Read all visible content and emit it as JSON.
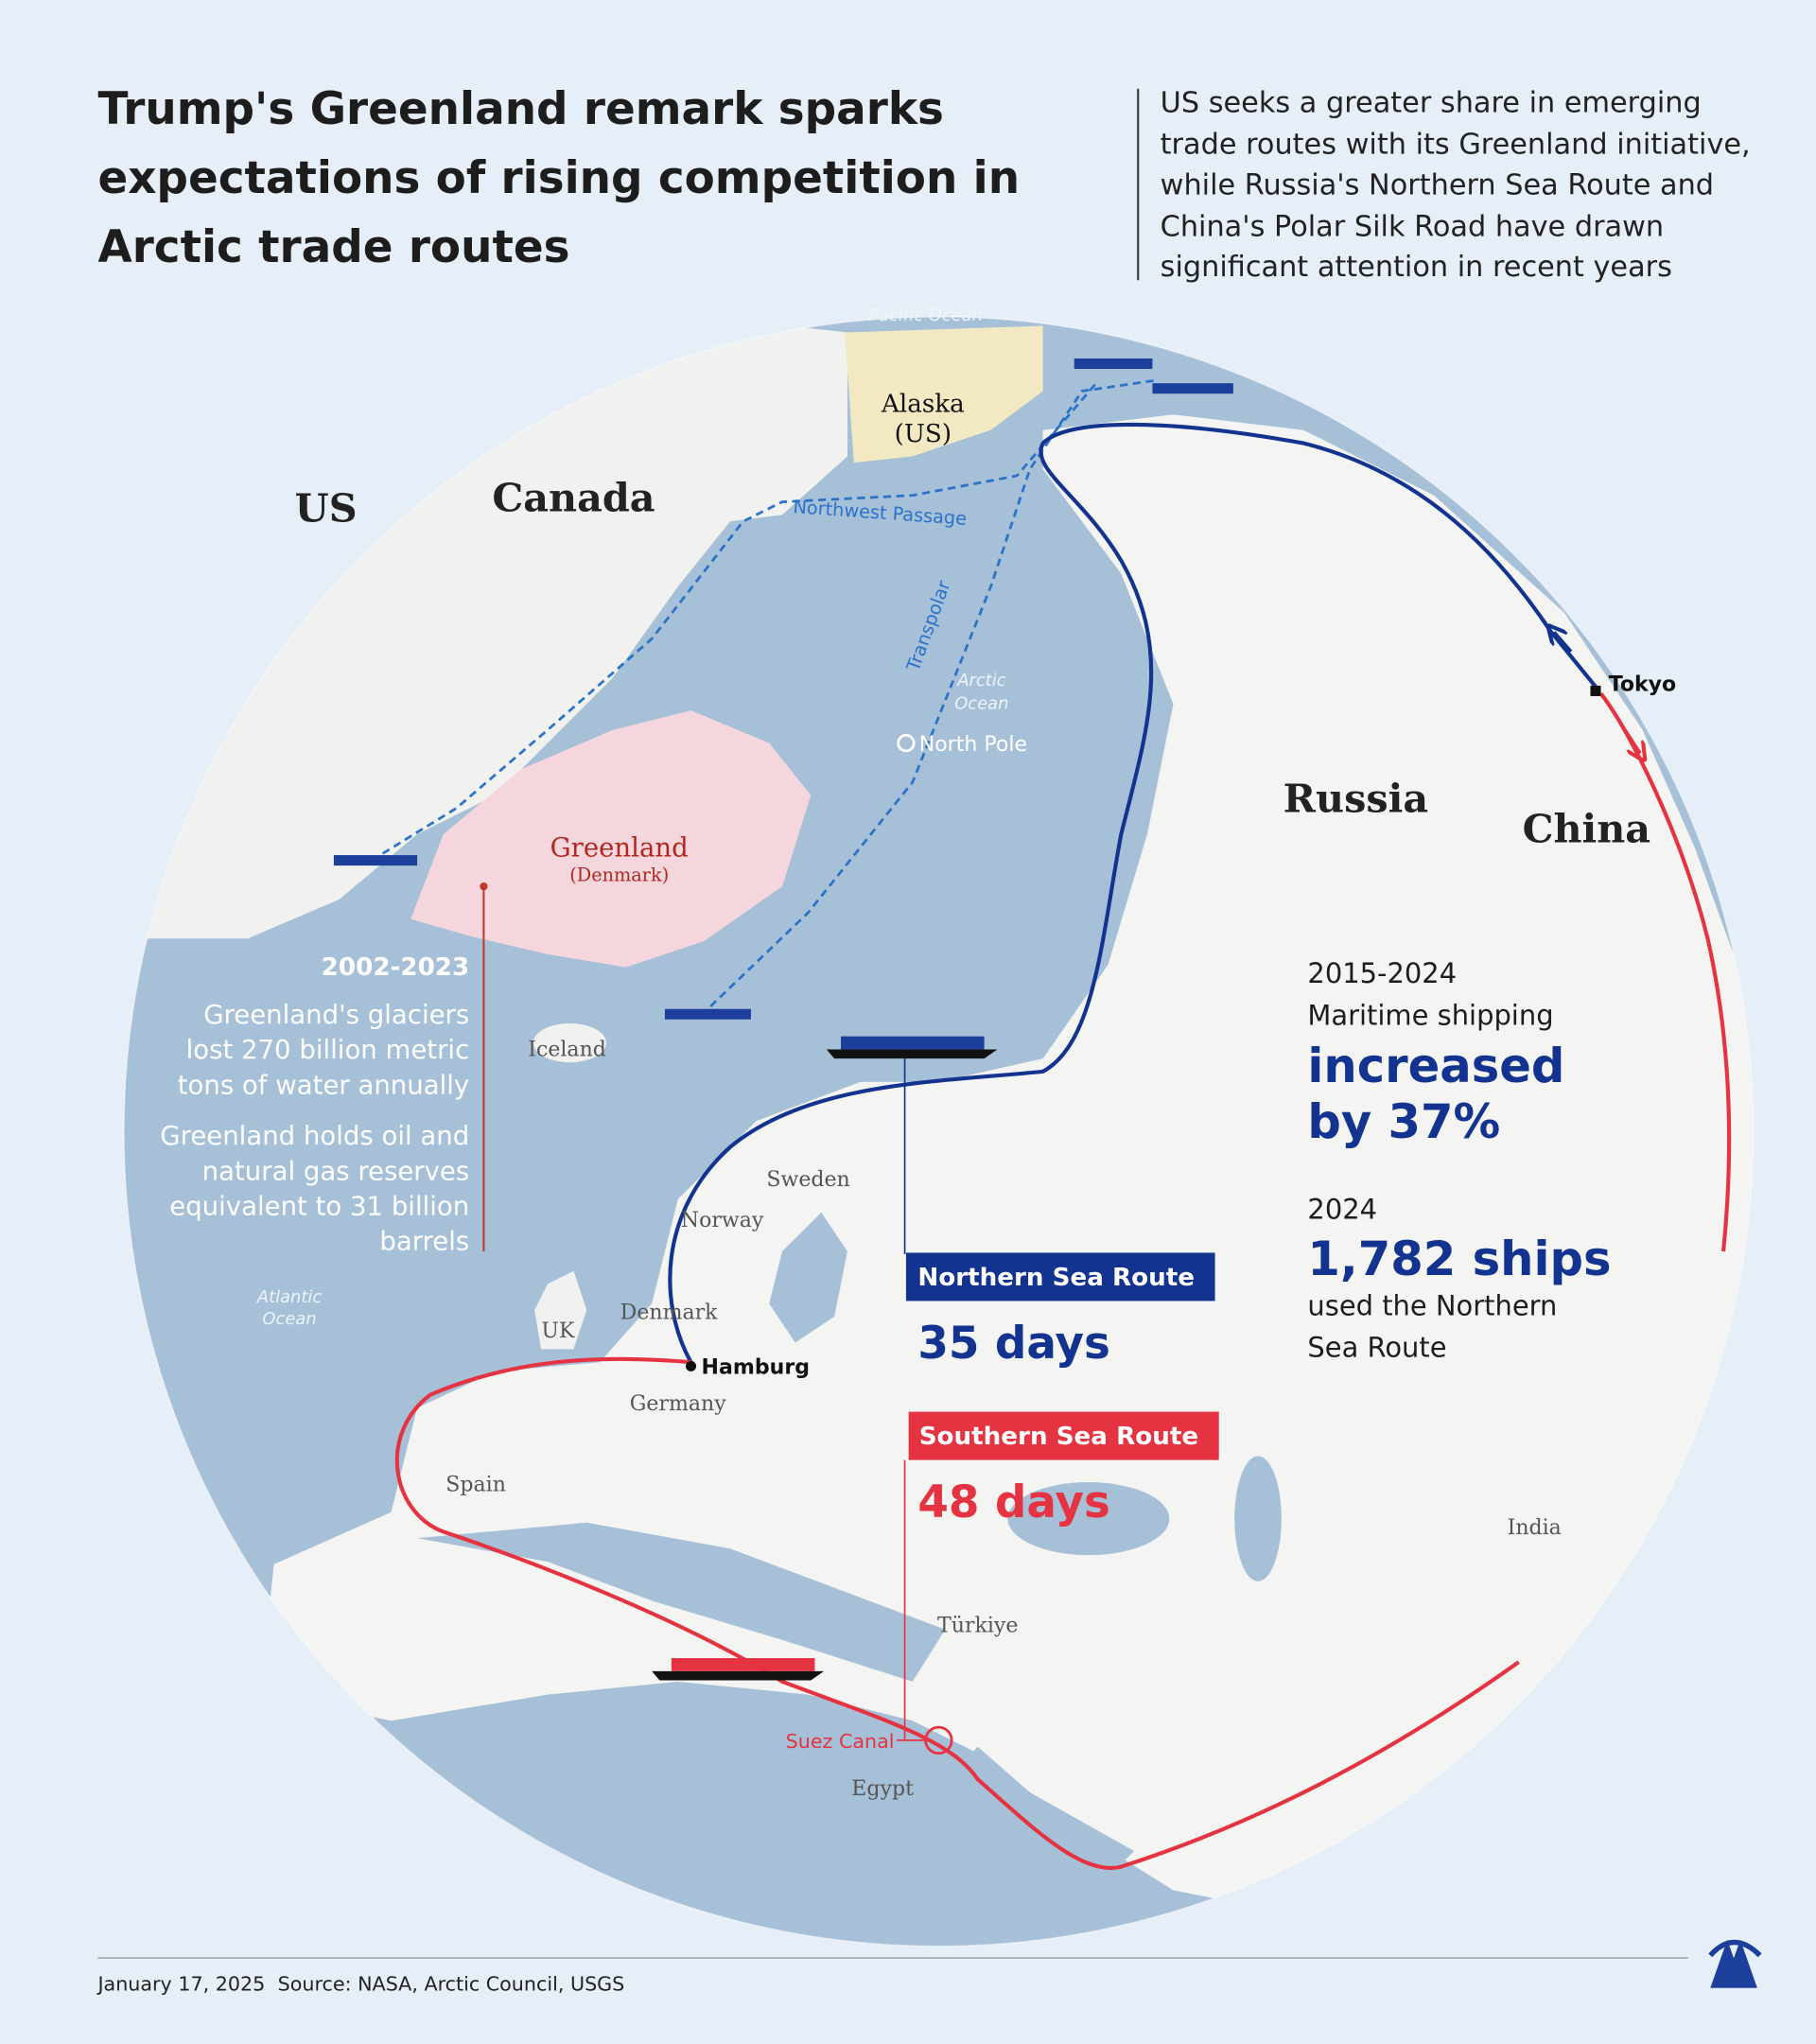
{
  "header": {
    "title": [
      "Trump's Greenland remark sparks",
      "expectations of rising competition in",
      "Arctic trade routes"
    ],
    "subtitle": [
      "US seeks a greater share in emerging",
      "trade routes with its Greenland initiative,",
      "while Russia's Northern Sea Route and",
      "China's Polar Silk Road have drawn",
      "significant attention in recent years"
    ]
  },
  "map": {
    "oceans": {
      "pacific": "Pacific Ocean",
      "arctic": [
        "Arctic",
        "Ocean"
      ],
      "atlantic": [
        "Atlantic",
        "Ocean"
      ]
    },
    "countries": {
      "us": "US",
      "canada": "Canada",
      "alaska": [
        "Alaska",
        "(US)"
      ],
      "greenland": [
        "Greenland",
        "(Denmark)"
      ],
      "russia": "Russia",
      "china": "China",
      "iceland": "Iceland",
      "sweden": "Sweden",
      "norway": "Norway",
      "denmark": "Denmark",
      "uk": "UK",
      "germany": "Germany",
      "spain": "Spain",
      "turkiye": "Türkiye",
      "egypt": "Egypt",
      "india": "India"
    },
    "places": {
      "north_pole": "North Pole",
      "tokyo": "Tokyo",
      "hamburg": "Hamburg",
      "suez": "Suez Canal"
    }
  },
  "routes": {
    "northwest_passage": "Northwest Passage",
    "transpolar": "Transpolar",
    "northern": {
      "name": "Northern Sea Route",
      "duration": "35 days"
    },
    "southern": {
      "name": "Southern Sea Route",
      "duration": "48 days"
    }
  },
  "greenland_facts": {
    "period": "2002-2023",
    "glaciers": [
      "Greenland's glaciers",
      "lost 270 billion metric",
      "tons of water annually"
    ],
    "resources": [
      "Greenland holds oil and",
      "natural gas reserves",
      "equivalent to 31 billion",
      "barrels"
    ]
  },
  "stats": {
    "period": "2015-2024",
    "shipping_label": "Maritime shipping",
    "shipping_change": [
      "increased",
      "by 37%"
    ],
    "year": "2024",
    "ships": "1,782 ships",
    "ships_label": [
      "used the Northern",
      "Sea Route"
    ]
  },
  "footer": {
    "date": "January 17, 2025",
    "source": "Source: NASA, Arctic Council, USGS"
  }
}
